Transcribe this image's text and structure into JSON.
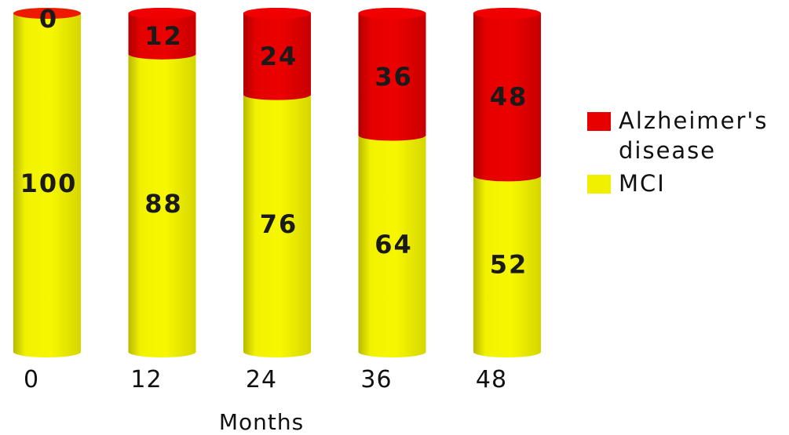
{
  "chart_data": {
    "type": "bar",
    "stacked": true,
    "style": "3d-cylinder",
    "categories": [
      "0",
      "12",
      "24",
      "36",
      "48"
    ],
    "series": [
      {
        "name": "MCI",
        "color": "#f0f000",
        "values": [
          100,
          88,
          76,
          64,
          52
        ]
      },
      {
        "name": "Alzheimer's disease",
        "color": "#e80000",
        "values": [
          0,
          12,
          24,
          36,
          48
        ]
      }
    ],
    "xlabel": "Months",
    "ylabel": "",
    "ylim": [
      0,
      100
    ],
    "grid": false,
    "legend_position": "right"
  },
  "legend": {
    "items": [
      {
        "label": "Alzheimer's\ndisease",
        "color": "#e80000"
      },
      {
        "label": "MCI",
        "color": "#f0f000"
      }
    ]
  }
}
